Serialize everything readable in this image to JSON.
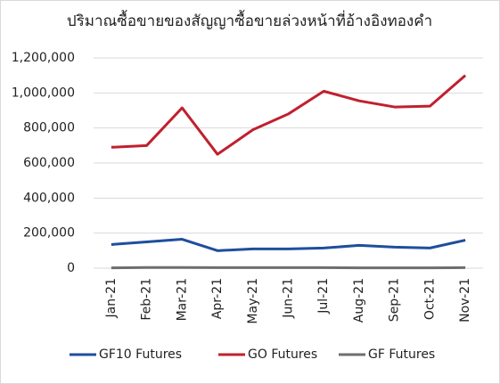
{
  "chart_data": {
    "type": "line",
    "title": "ปริมาณซื้อขายของสัญญาซื้อขายล่วงหน้าที่อ้างอิงทองคำ",
    "categories": [
      "Jan-21",
      "Feb-21",
      "Mar-21",
      "Apr-21",
      "May-21",
      "Jun-21",
      "Jul-21",
      "Aug-21",
      "Sep-21",
      "Oct-21",
      "Nov-21"
    ],
    "series": [
      {
        "name": "GF10 Futures",
        "color": "#1f4e9c",
        "values": [
          135000,
          150000,
          165000,
          100000,
          110000,
          110000,
          115000,
          130000,
          120000,
          115000,
          160000
        ]
      },
      {
        "name": "GO Futures",
        "color": "#c0202f",
        "values": [
          690000,
          700000,
          915000,
          650000,
          790000,
          880000,
          1010000,
          955000,
          920000,
          925000,
          1100000
        ]
      },
      {
        "name": "GF Futures",
        "color": "#6e6e6e",
        "values": [
          2000,
          4000,
          4000,
          3000,
          3000,
          3000,
          3000,
          2000,
          2000,
          2000,
          3000
        ]
      }
    ],
    "ylim": [
      0,
      1200000
    ],
    "yticks": [
      0,
      {
        "value": 200000,
        "label": "200,000"
      },
      {
        "value": 400000,
        "label": "400,000"
      },
      {
        "value": 600000,
        "label": "600,000"
      },
      {
        "value": 800000,
        "label": "800,000"
      },
      {
        "value": 1000000,
        "label": "1,000,000"
      },
      {
        "value": 1200000,
        "label": "1,200,000"
      }
    ],
    "grid": true,
    "legend": "bottom"
  }
}
